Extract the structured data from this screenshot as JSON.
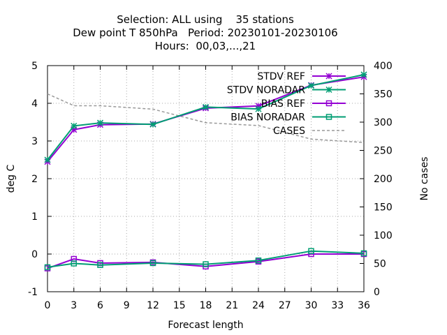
{
  "chart_data": {
    "type": "line",
    "title_lines": [
      "Selection: ALL using    35 stations",
      "Dew point T 850hPa   Period: 20230101-20230106",
      "Hours:  00,03,...,21"
    ],
    "xlabel": "Forecast length",
    "ylabel": "deg C",
    "y2label": "No cases",
    "xlim": [
      0,
      36
    ],
    "xticks": [
      0,
      3,
      6,
      9,
      12,
      15,
      18,
      21,
      24,
      27,
      30,
      33,
      36
    ],
    "ylim": [
      -1,
      5
    ],
    "yticks": [
      -1,
      0,
      1,
      2,
      3,
      4,
      5
    ],
    "y2lim": [
      0,
      400
    ],
    "y2ticks": [
      0,
      50,
      100,
      150,
      200,
      250,
      300,
      350,
      400
    ],
    "grid": true,
    "legend_position": "top-right",
    "series": [
      {
        "name": "STDV REF",
        "axis": "y",
        "color": "#9400d3",
        "marker": "star",
        "x": [
          0,
          3,
          6,
          12,
          18,
          24,
          30,
          36
        ],
        "values": [
          2.45,
          3.3,
          3.43,
          3.45,
          3.87,
          3.93,
          4.48,
          4.7
        ]
      },
      {
        "name": "STDV NORADAR",
        "axis": "y",
        "color": "#009e73",
        "marker": "star",
        "x": [
          0,
          3,
          6,
          12,
          18,
          24,
          30,
          36
        ],
        "values": [
          2.5,
          3.4,
          3.48,
          3.44,
          3.9,
          3.85,
          4.47,
          4.76
        ]
      },
      {
        "name": "BIAS REF",
        "axis": "y",
        "color": "#9400d3",
        "marker": "square",
        "x": [
          0,
          3,
          6,
          12,
          18,
          24,
          30,
          36
        ],
        "values": [
          -0.38,
          -0.13,
          -0.24,
          -0.22,
          -0.33,
          -0.2,
          0.0,
          0.0
        ]
      },
      {
        "name": "BIAS NORADAR",
        "axis": "y",
        "color": "#009e73",
        "marker": "square",
        "x": [
          0,
          3,
          6,
          12,
          18,
          24,
          30,
          36
        ],
        "values": [
          -0.35,
          -0.25,
          -0.29,
          -0.24,
          -0.27,
          -0.17,
          0.08,
          0.02
        ]
      },
      {
        "name": "CASES",
        "axis": "y2",
        "color": "#999999",
        "marker": "none",
        "dashed": true,
        "x": [
          0,
          3,
          6,
          12,
          18,
          24,
          30,
          36
        ],
        "values": [
          350,
          329,
          329,
          323,
          299,
          294,
          270,
          264
        ]
      }
    ]
  }
}
